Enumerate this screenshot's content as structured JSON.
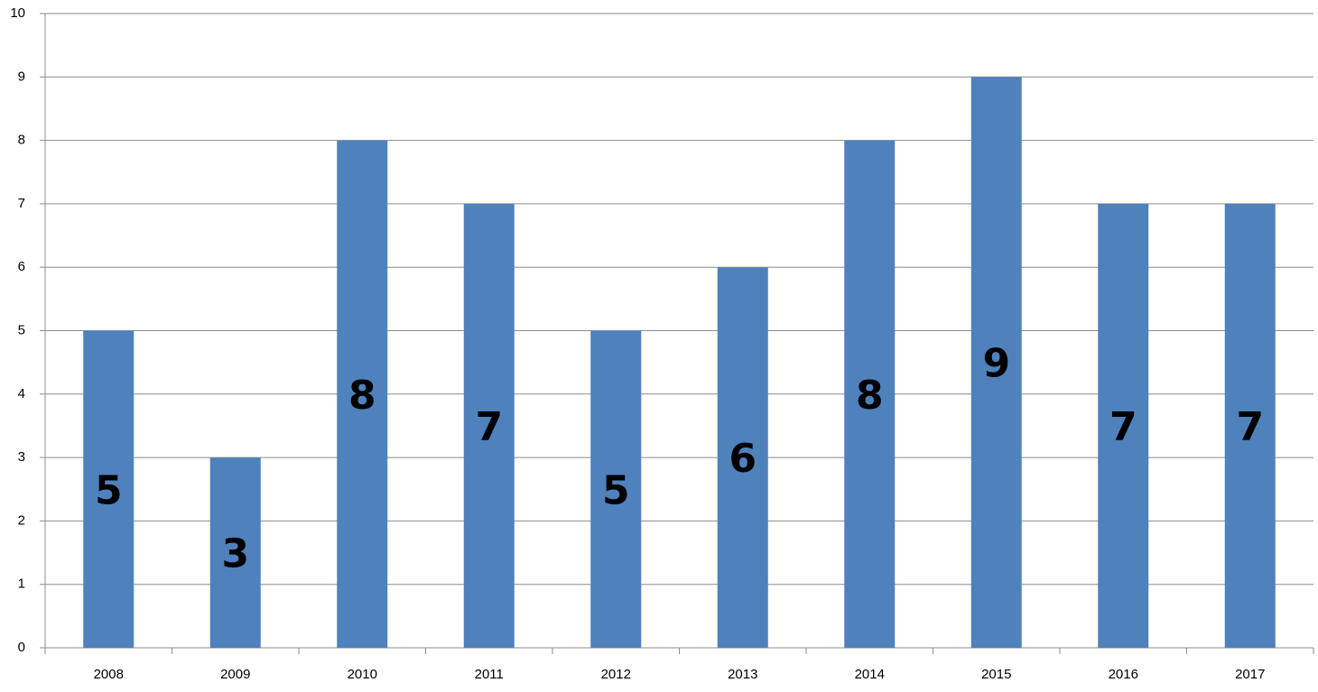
{
  "chart_data": {
    "type": "bar",
    "categories": [
      "2008",
      "2009",
      "2010",
      "2011",
      "2012",
      "2013",
      "2014",
      "2015",
      "2016",
      "2017"
    ],
    "values": [
      5,
      3,
      8,
      7,
      5,
      6,
      8,
      9,
      7,
      7
    ],
    "color": "#4f81bd",
    "ylim": [
      0,
      10
    ],
    "yticks": [
      0,
      1,
      2,
      3,
      4,
      5,
      6,
      7,
      8,
      9,
      10
    ],
    "grid": true
  }
}
